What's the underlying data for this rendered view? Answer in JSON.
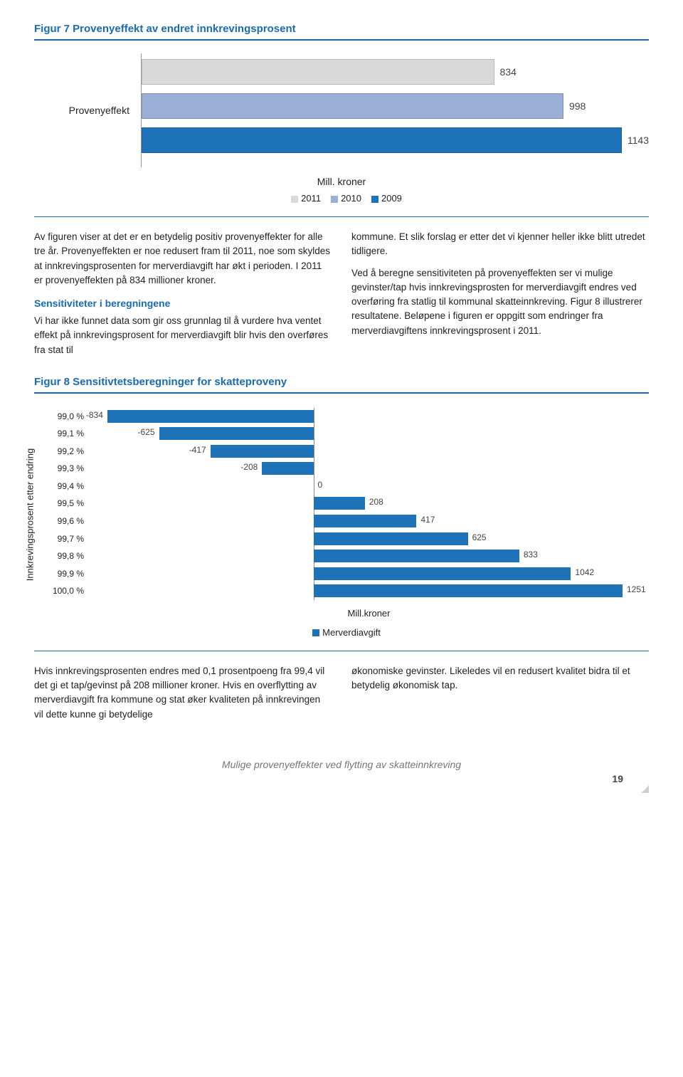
{
  "fig7": {
    "title": "Figur 7 Provenyeffekt av endret innkrevingsprosent",
    "type": "bar",
    "category_label": "Provenyeffekt",
    "series": [
      {
        "year": "2011",
        "value": 834,
        "color": "#d9d9d9"
      },
      {
        "year": "2010",
        "value": 998,
        "color": "#9aaed6"
      },
      {
        "year": "2009",
        "value": 1143,
        "color": "#1d72b8"
      }
    ],
    "xmax": 1200,
    "xlabel": "Mill. kroner"
  },
  "body": {
    "left_p1": "Av figuren viser at det er en betydelig positiv provenyeffekter for alle tre år. Provenyeffekten er noe redusert fram til 2011, noe som skyldes at innkrevingsprosenten for merverdiavgift har økt i perioden. I 2011 er provenyeffekten på 834 millioner kroner.",
    "left_sub": "Sensitiviteter i beregningene",
    "left_p2": "Vi har ikke funnet data som gir oss grunnlag til å vurdere hva ventet effekt på innkrevingsprosent for merverdiavgift blir hvis den overføres fra stat til",
    "right_p1": "kommune. Et slik forslag er etter det vi kjenner heller ikke blitt utredet tidligere.",
    "right_p2": "Ved å beregne sensitiviteten på provenyeffekten ser vi mulige gevinster/tap hvis innkrevingsprosten for merverdiavgift endres ved overføring fra statlig til kommunal skatteinnkreving. Figur 8 illustrerer resultatene. Beløpene i figuren er oppgitt som endringer fra merverdiavgiftens innkrevingsprosent i 2011."
  },
  "fig8": {
    "title": "Figur 8 Sensitivtetsberegninger for skatteproveny",
    "type": "bar",
    "ylabel": "Innkrevingsprosent etter endring",
    "xlabel": "Mill.kroner",
    "legend": "Merverdiavgift",
    "bar_color": "#1d72b8",
    "xmin": -900,
    "xmax": 1300,
    "rows": [
      {
        "cat": "99,0 %",
        "value": -834
      },
      {
        "cat": "99,1 %",
        "value": -625
      },
      {
        "cat": "99,2 %",
        "value": -417
      },
      {
        "cat": "99,3 %",
        "value": -208
      },
      {
        "cat": "99,4 %",
        "value": 0
      },
      {
        "cat": "99,5 %",
        "value": 208
      },
      {
        "cat": "99,6 %",
        "value": 417
      },
      {
        "cat": "99,7 %",
        "value": 625
      },
      {
        "cat": "99,8 %",
        "value": 833
      },
      {
        "cat": "99,9 %",
        "value": 1042
      },
      {
        "cat": "100,0 %",
        "value": 1251
      }
    ]
  },
  "closing": {
    "left": "Hvis innkrevingsprosenten endres med 0,1 prosentpoeng fra 99,4 vil det gi et tap/gevinst på 208 millioner kroner. Hvis en overflytting av merverdiavgift fra kommune og stat øker kvaliteten på innkrevingen vil dette kunne gi betydelige",
    "right": "økonomiske gevinster. Likeledes vil en redusert kvalitet bidra til et betydelig økonomisk tap."
  },
  "footer": {
    "text": "Mulige provenyeffekter ved flytting av skatteinnkreving",
    "page": "19"
  },
  "colors": {
    "accent": "#1a6bb0"
  }
}
